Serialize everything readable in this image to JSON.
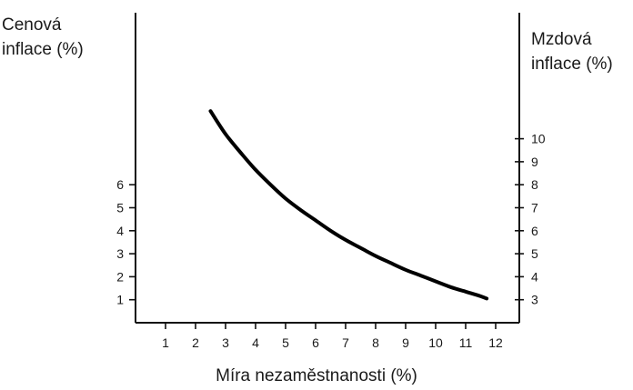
{
  "chart_data": {
    "type": "line",
    "xlabel": "Míra nezaměstnanosti (%)",
    "ylabel_left": [
      "Cenová",
      "inflace (%)"
    ],
    "ylabel_right": [
      "Mzdová",
      "inflace (%)"
    ],
    "x_ticks": [
      "1",
      "2",
      "3",
      "4",
      "5",
      "6",
      "7",
      "8",
      "9",
      "10",
      "11",
      "12"
    ],
    "y_left_ticks": [
      "1",
      "2",
      "3",
      "4",
      "5",
      "6"
    ],
    "y_right_ticks": [
      "3",
      "4",
      "5",
      "6",
      "7",
      "8",
      "9",
      "10"
    ],
    "xlim": [
      0,
      12.8
    ],
    "ylim_left": [
      0,
      13.5
    ],
    "right_axis_offset": 2,
    "grid": false,
    "line_color": "#000000",
    "series": [
      {
        "x": [
          2.5,
          3.0,
          3.5,
          4.0,
          4.5,
          5.0,
          5.5,
          6.0,
          6.5,
          7.0,
          7.5,
          8.0,
          8.5,
          9.0,
          9.5,
          10.0,
          10.5,
          11.0,
          11.5,
          11.7
        ],
        "y": [
          9.2,
          8.2,
          7.4,
          6.65,
          6.0,
          5.4,
          4.9,
          4.45,
          4.0,
          3.6,
          3.25,
          2.9,
          2.6,
          2.3,
          2.05,
          1.8,
          1.55,
          1.35,
          1.15,
          1.05
        ]
      }
    ]
  }
}
